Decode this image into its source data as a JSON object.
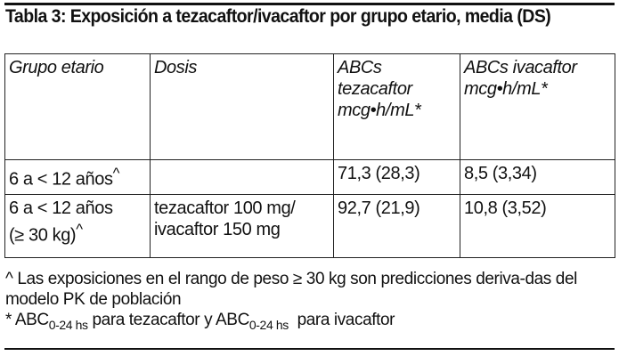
{
  "title": "Tabla 3: Exposición a tezacaftor/ivacaftor por grupo etario, media (DS)",
  "table": {
    "headers": [
      "Grupo etario",
      "Dosis",
      "ABCs tezacaftor mcg•h/mL*",
      "ABCs ivacaftor mcg•h/mL*"
    ],
    "rows": [
      {
        "group": "6 a < 12 años",
        "group_mark": "^",
        "dose_line1": "",
        "dose_line2": "",
        "tez": "71,3 (28,3)",
        "iva": "8,5 (3,34)"
      },
      {
        "group": "6 a < 12 años",
        "group_line2": "(≥ 30 kg)",
        "group_mark": "^",
        "dose_line1": "tezacaftor 100 mg/",
        "dose_line2": "ivacaftor 150 mg",
        "tez": "92,7 (21,9)",
        "iva": "10,8 (3,52)"
      }
    ]
  },
  "footnotes": {
    "caret": "^ Las exposiciones en el rango de peso ≥ 30 kg son predicciones deriva-das del modelo PK de población",
    "star_prefix": "* ABC",
    "sub1": "0-24 hs",
    "mid": " para tezacaftor y ABC",
    "sub2": "0-24 hs",
    "suffix": "  para ivacaftor"
  }
}
